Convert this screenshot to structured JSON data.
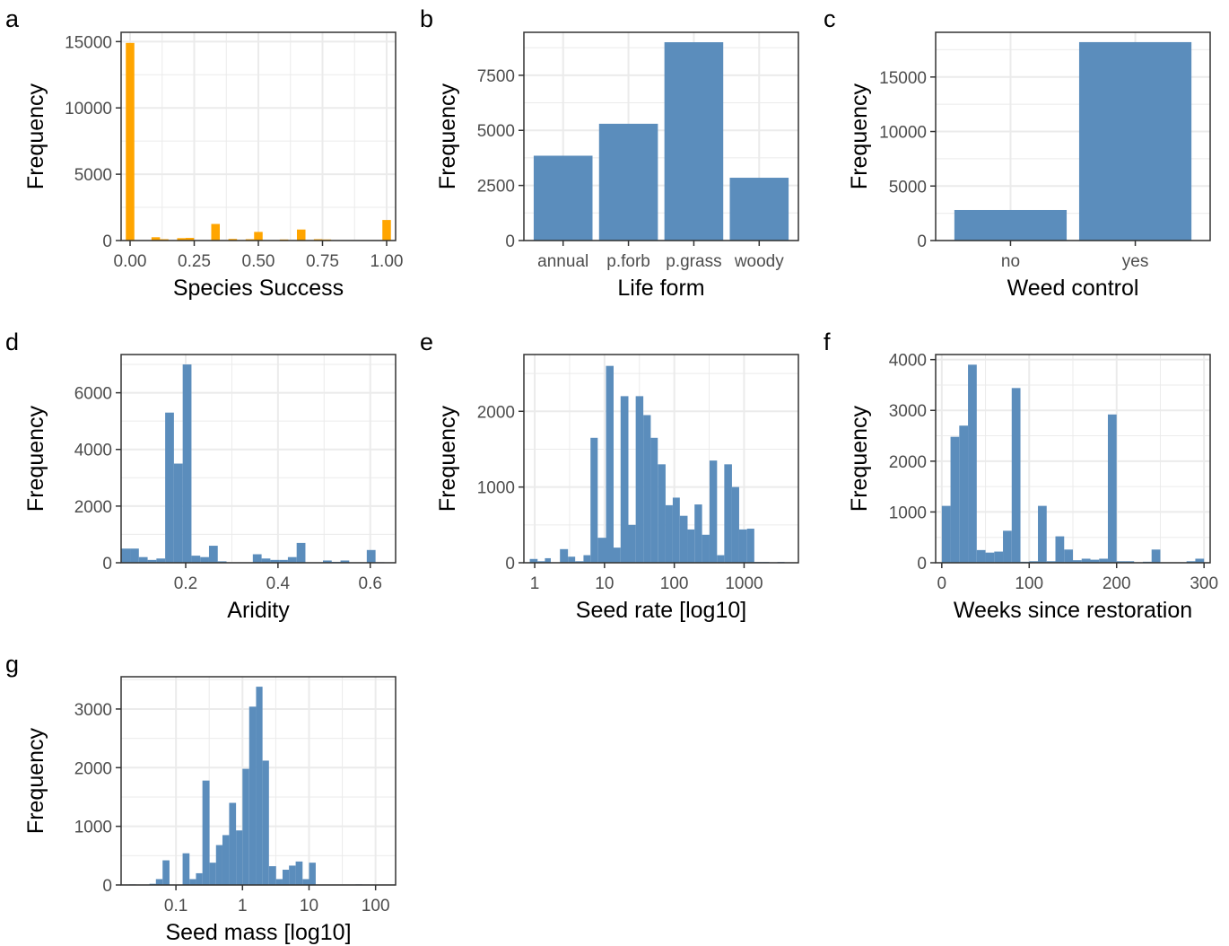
{
  "style": {
    "bar_color_orange": "#FFA500",
    "bar_color_blue": "#5B8DBC",
    "grid_color": "#EBEBEB",
    "frame_color": "#333333"
  },
  "chart_data": [
    {
      "panel_label": "a",
      "type": "bar",
      "subtype": "histogram",
      "xlabel": "Species Success",
      "ylabel": "Frequency",
      "xlim": [
        -0.035,
        1.035
      ],
      "ylim": [
        0,
        15700
      ],
      "xticks": [
        0,
        0.25,
        0.5,
        0.75,
        1
      ],
      "xtick_labels": [
        "0.00",
        "0.25",
        "0.50",
        "0.75",
        "1.00"
      ],
      "yticks": [
        0,
        5000,
        10000,
        15000
      ],
      "ytick_labels": [
        "0",
        "5000",
        "10000",
        "15000"
      ],
      "bin_width": 0.0333,
      "x": [
        0.0,
        0.1,
        0.133,
        0.2,
        0.233,
        0.333,
        0.4,
        0.467,
        0.5,
        0.6,
        0.667,
        0.733,
        0.767,
        1.0
      ],
      "values": [
        14900,
        250,
        100,
        180,
        200,
        1250,
        120,
        100,
        650,
        80,
        830,
        100,
        80,
        1550
      ],
      "color": "#FFA500"
    },
    {
      "panel_label": "b",
      "type": "bar",
      "xlabel": "Life form",
      "ylabel": "Frequency",
      "categories": [
        "annual",
        "p.forb",
        "p.grass",
        "woody"
      ],
      "values": [
        3850,
        5300,
        9000,
        2850
      ],
      "ylim": [
        0,
        9450
      ],
      "yticks": [
        0,
        2500,
        5000,
        7500
      ],
      "ytick_labels": [
        "0",
        "2500",
        "5000",
        "7500"
      ],
      "color": "#5B8DBC"
    },
    {
      "panel_label": "c",
      "type": "bar",
      "xlabel": "Weed control",
      "ylabel": "Frequency",
      "categories": [
        "no",
        "yes"
      ],
      "values": [
        2800,
        18200
      ],
      "ylim": [
        0,
        19100
      ],
      "yticks": [
        0,
        5000,
        10000,
        15000
      ],
      "ytick_labels": [
        "0",
        "5000",
        "10000",
        "15000"
      ],
      "color": "#5B8DBC"
    },
    {
      "panel_label": "d",
      "type": "bar",
      "subtype": "histogram",
      "xlabel": "Aridity",
      "ylabel": "Frequency",
      "xlim": [
        0.06,
        0.655
      ],
      "ylim": [
        0,
        7350
      ],
      "xticks": [
        0.2,
        0.4,
        0.6
      ],
      "xtick_labels": [
        "0.2",
        "0.4",
        "0.6"
      ],
      "yticks": [
        0,
        2000,
        4000,
        6000
      ],
      "ytick_labels": [
        "0",
        "2000",
        "4000",
        "6000"
      ],
      "bin_width": 0.019,
      "x": [
        0.07,
        0.089,
        0.108,
        0.127,
        0.146,
        0.165,
        0.184,
        0.203,
        0.222,
        0.241,
        0.26,
        0.279,
        0.298,
        0.317,
        0.336,
        0.355,
        0.374,
        0.393,
        0.412,
        0.431,
        0.45,
        0.469,
        0.488,
        0.507,
        0.526,
        0.545,
        0.564,
        0.583,
        0.602,
        0.621,
        0.64
      ],
      "values": [
        500,
        500,
        200,
        100,
        150,
        5300,
        3500,
        7000,
        250,
        200,
        600,
        50,
        0,
        0,
        0,
        300,
        150,
        100,
        100,
        200,
        700,
        0,
        0,
        80,
        30,
        80,
        0,
        0,
        450,
        20,
        0
      ],
      "color": "#5B8DBC"
    },
    {
      "panel_label": "e",
      "type": "bar",
      "subtype": "histogram",
      "x_scale": "log10",
      "xlabel": "Seed rate [log10]",
      "ylabel": "Frequency",
      "xlim": [
        0.7,
        6000
      ],
      "ylim": [
        0,
        2750
      ],
      "xticks": [
        1,
        10,
        100,
        1000
      ],
      "xtick_labels": [
        "1",
        "10",
        "100",
        "1000"
      ],
      "yticks": [
        0,
        1000,
        2000
      ],
      "ytick_labels": [
        "0",
        "1000",
        "2000"
      ],
      "bin_edges": [
        0.85,
        1.1,
        1.4,
        1.7,
        2.3,
        3,
        3.8,
        5,
        6.3,
        8,
        10.5,
        13.5,
        17,
        22,
        28,
        36,
        46,
        58,
        75,
        95,
        120,
        155,
        195,
        250,
        320,
        410,
        520,
        670,
        850,
        1100,
        1400,
        1800,
        2300,
        3000,
        3800,
        4800
      ],
      "values": [
        50,
        20,
        60,
        0,
        180,
        80,
        20,
        100,
        1650,
        330,
        2600,
        200,
        2200,
        500,
        2200,
        1950,
        1650,
        1300,
        760,
        860,
        620,
        440,
        770,
        370,
        1350,
        100,
        1300,
        1000,
        440,
        450,
        10,
        10,
        0,
        10,
        0
      ],
      "color": "#5B8DBC"
    },
    {
      "panel_label": "f",
      "type": "bar",
      "subtype": "histogram",
      "xlabel": "Weeks since restoration",
      "ylabel": "Frequency",
      "xlim": [
        -7,
        307
      ],
      "ylim": [
        0,
        4100
      ],
      "xticks": [
        0,
        100,
        200,
        300
      ],
      "xtick_labels": [
        "0",
        "100",
        "200",
        "300"
      ],
      "yticks": [
        0,
        1000,
        2000,
        3000,
        4000
      ],
      "ytick_labels": [
        "0",
        "1000",
        "2000",
        "3000",
        "4000"
      ],
      "bin_width": 10,
      "x": [
        5,
        15,
        25,
        35,
        45,
        55,
        65,
        75,
        85,
        95,
        105,
        115,
        125,
        135,
        145,
        155,
        165,
        175,
        185,
        195,
        205,
        215,
        225,
        235,
        245,
        255,
        265,
        275,
        285,
        295
      ],
      "values": [
        1120,
        2480,
        2700,
        3900,
        250,
        200,
        220,
        630,
        3440,
        20,
        30,
        1120,
        30,
        520,
        260,
        50,
        80,
        60,
        80,
        2920,
        30,
        30,
        0,
        20,
        260,
        0,
        0,
        0,
        30,
        80
      ],
      "color": "#5B8DBC"
    },
    {
      "panel_label": "g",
      "type": "bar",
      "subtype": "histogram",
      "x_scale": "log10",
      "xlabel": "Seed mass [log10]",
      "ylabel": "Frequency",
      "xlim": [
        0.015,
        200
      ],
      "ylim": [
        0,
        3550
      ],
      "xticks": [
        0.1,
        1,
        10,
        100
      ],
      "xtick_labels": [
        "0.1",
        "1",
        "10",
        "100"
      ],
      "yticks": [
        0,
        1000,
        2000,
        3000
      ],
      "ytick_labels": [
        "0",
        "1000",
        "2000",
        "3000"
      ],
      "bin_edges": [
        0.02,
        0.025,
        0.032,
        0.04,
        0.05,
        0.063,
        0.08,
        0.1,
        0.126,
        0.16,
        0.2,
        0.25,
        0.32,
        0.4,
        0.5,
        0.63,
        0.8,
        1,
        1.26,
        1.6,
        2,
        2.5,
        3.2,
        4,
        5,
        6.3,
        8,
        10,
        12.6,
        16,
        20,
        25,
        32,
        40,
        50,
        63,
        80,
        100,
        126
      ],
      "values": [
        10,
        0,
        0,
        20,
        100,
        420,
        0,
        0,
        540,
        100,
        200,
        1780,
        380,
        680,
        850,
        1400,
        930,
        1980,
        3040,
        3380,
        2120,
        320,
        100,
        260,
        330,
        400,
        100,
        380,
        0,
        0,
        0,
        0,
        0,
        0,
        10,
        0,
        0,
        0
      ],
      "color": "#5B8DBC"
    }
  ]
}
